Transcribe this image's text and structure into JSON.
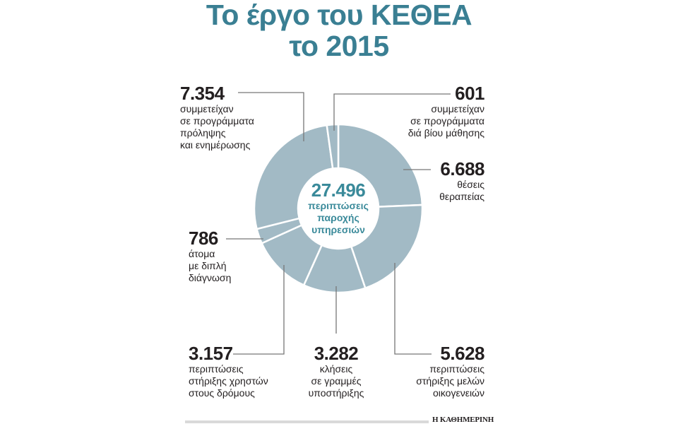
{
  "title": {
    "line1": "Το έργο του ΚΕΘΕΑ",
    "line2": "το 2015"
  },
  "center": {
    "total": "27.496",
    "line1": "περιπτώσεις",
    "line2": "παροχής",
    "line3": "υπηρεσιών"
  },
  "labels": {
    "therapy": {
      "value": "6.688",
      "line1": "θέσεις",
      "line2": "θεραπείας"
    },
    "families": {
      "value": "5.628",
      "line1": "περιπτώσεις",
      "line2": "στήριξης μελών",
      "line3": "οικογενειών"
    },
    "hotline": {
      "value": "3.282",
      "line1": "κλήσεις",
      "line2": "σε γραμμές",
      "line3": "υποστήριξης"
    },
    "street": {
      "value": "3.157",
      "line1": "περιπτώσεις",
      "line2": "στήριξης χρηστών",
      "line3": "στους δρόμους"
    },
    "dual": {
      "value": "786",
      "line1": "άτομα",
      "line2": "με διπλή",
      "line3": "διάγνωση"
    },
    "prevention": {
      "value": "7.354",
      "line1": "συμμετείχαν",
      "line2": "σε προγράμματα",
      "line3": "πρόληψης",
      "line4": "και ενημέρωσης"
    },
    "lifelong": {
      "value": "601",
      "line1": "συμμετείχαν",
      "line2": "σε προγράμματα",
      "line3": "διά βίου μάθησης"
    }
  },
  "footer": {
    "brand": "Η ΚΑΘΗΜΕΡΙΝΗ"
  },
  "colors": {
    "title": "#3a7f93",
    "slice": "#a2bac5",
    "center_text": "#3a8a9a",
    "leader": "#777777"
  },
  "chart_data": {
    "type": "pie",
    "title": "Το έργο του ΚΕΘΕΑ το 2015",
    "subtitle": "27.496 περιπτώσεις παροχής υπηρεσιών",
    "donut": true,
    "total": 27496,
    "categories": [
      "θέσεις θεραπείας",
      "περιπτώσεις στήριξης μελών οικογενειών",
      "κλήσεις σε γραμμές υποστήριξης",
      "περιπτώσεις στήριξης χρηστών στους δρόμους",
      "άτομα με διπλή διάγνωση",
      "συμμετείχαν σε προγράμματα πρόληψης και ενημέρωσης",
      "συμμετείχαν σε προγράμματα διά βίου μάθησης"
    ],
    "values": [
      6688,
      5628,
      3282,
      3157,
      786,
      7354,
      601
    ],
    "start_angle_deg": 0,
    "direction": "clockwise",
    "legend": "none (direct labels with leader lines)"
  }
}
